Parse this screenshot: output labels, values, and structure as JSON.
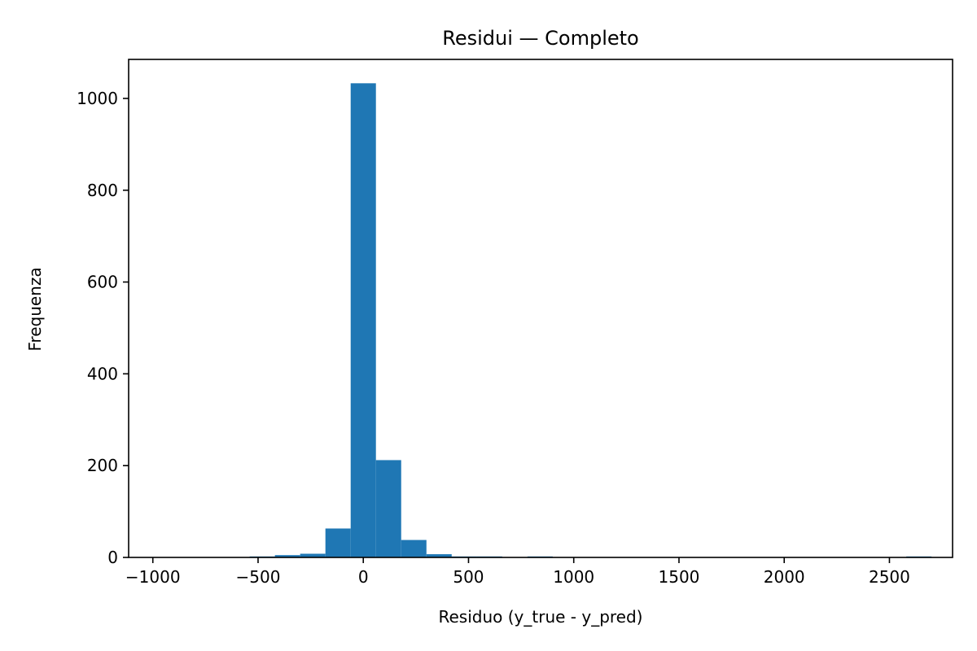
{
  "chart_data": {
    "type": "bar",
    "title": "Residui — Completo",
    "xlabel": "Residuo (y_true - y_pred)",
    "ylabel": "Frequenza",
    "xlim": [
      -1115,
      2800
    ],
    "ylim": [
      0,
      1085
    ],
    "xticks": [
      -1000,
      -500,
      0,
      500,
      1000,
      1500,
      2000,
      2500
    ],
    "xtick_labels": [
      "−1000",
      "−500",
      "0",
      "500",
      "1000",
      "1500",
      "2000",
      "2500"
    ],
    "yticks": [
      0,
      200,
      400,
      600,
      800,
      1000
    ],
    "ytick_labels": [
      "0",
      "200",
      "400",
      "600",
      "800",
      "1000"
    ],
    "bar_color": "#1f77b4",
    "grid": false,
    "bins": [
      {
        "x0": -1020,
        "x1": -900,
        "count": 0
      },
      {
        "x0": -900,
        "x1": -780,
        "count": 0
      },
      {
        "x0": -780,
        "x1": -660,
        "count": 0
      },
      {
        "x0": -660,
        "x1": -540,
        "count": 0
      },
      {
        "x0": -540,
        "x1": -420,
        "count": 2
      },
      {
        "x0": -420,
        "x1": -300,
        "count": 5
      },
      {
        "x0": -300,
        "x1": -180,
        "count": 8
      },
      {
        "x0": -180,
        "x1": -60,
        "count": 63
      },
      {
        "x0": -60,
        "x1": 60,
        "count": 1033
      },
      {
        "x0": 60,
        "x1": 180,
        "count": 212
      },
      {
        "x0": 180,
        "x1": 300,
        "count": 38
      },
      {
        "x0": 300,
        "x1": 420,
        "count": 7
      },
      {
        "x0": 420,
        "x1": 540,
        "count": 1
      },
      {
        "x0": 540,
        "x1": 660,
        "count": 1
      },
      {
        "x0": 660,
        "x1": 780,
        "count": 0
      },
      {
        "x0": 780,
        "x1": 900,
        "count": 1
      },
      {
        "x0": 900,
        "x1": 1020,
        "count": 0
      },
      {
        "x0": 1020,
        "x1": 1140,
        "count": 0
      },
      {
        "x0": 1140,
        "x1": 1260,
        "count": 0
      },
      {
        "x0": 1260,
        "x1": 1380,
        "count": 0
      },
      {
        "x0": 1380,
        "x1": 1500,
        "count": 0
      },
      {
        "x0": 1500,
        "x1": 1620,
        "count": 0
      },
      {
        "x0": 1620,
        "x1": 1740,
        "count": 0
      },
      {
        "x0": 1740,
        "x1": 1860,
        "count": 0
      },
      {
        "x0": 1860,
        "x1": 1980,
        "count": 0
      },
      {
        "x0": 1980,
        "x1": 2100,
        "count": 0
      },
      {
        "x0": 2100,
        "x1": 2220,
        "count": 0
      },
      {
        "x0": 2220,
        "x1": 2340,
        "count": 0
      },
      {
        "x0": 2340,
        "x1": 2460,
        "count": 0
      },
      {
        "x0": 2460,
        "x1": 2580,
        "count": 0
      },
      {
        "x0": 2580,
        "x1": 2700,
        "count": 1
      }
    ]
  }
}
